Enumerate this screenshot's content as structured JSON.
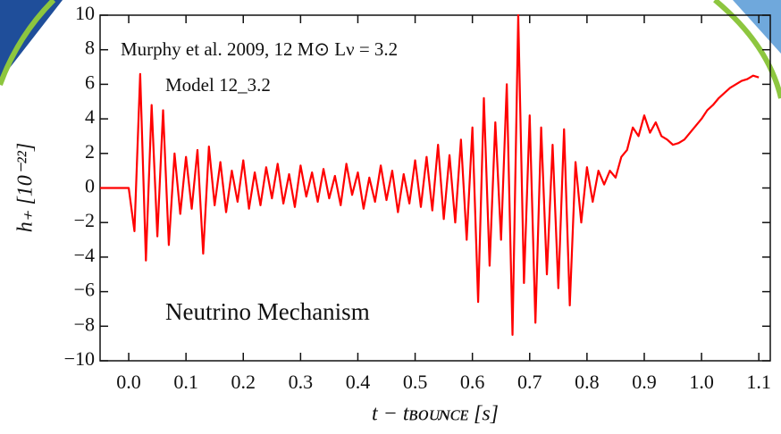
{
  "chart_data": {
    "type": "line",
    "annotations": [
      "Murphy et al. 2009, 12 M⊙ Lν = 3.2",
      "Model 12_3.2",
      "Neutrino Mechanism"
    ],
    "x_label": "t − tʙᴏᴜɴᴄᴇ [s]",
    "y_label": "h₊ [10⁻²²]",
    "xlim": [
      -0.05,
      1.12
    ],
    "ylim": [
      -10,
      10
    ],
    "xticks": [
      {
        "value": 0,
        "label": "0.0"
      },
      0.1,
      0.2,
      0.3,
      0.4,
      0.5,
      0.6,
      0.7,
      0.8,
      0.9,
      {
        "value": 1,
        "label": "1.0"
      },
      1.1
    ],
    "yticks": [
      {
        "value": -10,
        "label": "−10"
      },
      {
        "value": -8,
        "label": "−8"
      },
      {
        "value": -6,
        "label": "−6"
      },
      {
        "value": -4,
        "label": "−4"
      },
      {
        "value": -2,
        "label": "−2"
      },
      0,
      2,
      4,
      6,
      8,
      10
    ],
    "x": [
      -0.05,
      -0.04,
      -0.03,
      -0.02,
      -0.01,
      0,
      0.01,
      0.02,
      0.03,
      0.04,
      0.05,
      0.06,
      0.07,
      0.08,
      0.09,
      0.1,
      0.11,
      0.12,
      0.13,
      0.14,
      0.15,
      0.16,
      0.17,
      0.18,
      0.19,
      0.2,
      0.21,
      0.22,
      0.23,
      0.24,
      0.25,
      0.26,
      0.27,
      0.28,
      0.29,
      0.3,
      0.31,
      0.32,
      0.33,
      0.34,
      0.35,
      0.36,
      0.37,
      0.38,
      0.39,
      0.4,
      0.41,
      0.42,
      0.43,
      0.44,
      0.45,
      0.46,
      0.47,
      0.48,
      0.49,
      0.5,
      0.51,
      0.52,
      0.53,
      0.54,
      0.55,
      0.56,
      0.57,
      0.58,
      0.59,
      0.6,
      0.61,
      0.62,
      0.63,
      0.64,
      0.65,
      0.66,
      0.67,
      0.68,
      0.69,
      0.7,
      0.71,
      0.72,
      0.73,
      0.74,
      0.75,
      0.76,
      0.77,
      0.78,
      0.79,
      0.8,
      0.81,
      0.82,
      0.83,
      0.84,
      0.85,
      0.86,
      0.87,
      0.88,
      0.89,
      0.9,
      0.91,
      0.92,
      0.93,
      0.94,
      0.95,
      0.96,
      0.97,
      0.98,
      0.99,
      1,
      1.01,
      1.02,
      1.03,
      1.04,
      1.05,
      1.06,
      1.07,
      1.08,
      1.09,
      1.1
    ],
    "series": [
      {
        "color": "#ff0000",
        "values": [
          0,
          0,
          0,
          0,
          0,
          0,
          -2.5,
          6.6,
          -4.2,
          4.8,
          -2.8,
          4.5,
          -3.3,
          2.0,
          -1.5,
          1.8,
          -1.2,
          2.2,
          -3.8,
          2.4,
          -1.0,
          1.5,
          -1.4,
          1.0,
          -0.8,
          1.6,
          -1.2,
          0.9,
          -1.0,
          1.2,
          -0.6,
          1.4,
          -0.9,
          0.8,
          -1.1,
          1.3,
          -0.5,
          0.9,
          -0.8,
          1.1,
          -0.6,
          0.7,
          -1.0,
          1.4,
          -0.4,
          0.9,
          -1.2,
          0.6,
          -0.8,
          1.3,
          -0.7,
          1.0,
          -1.4,
          0.8,
          -0.9,
          1.6,
          -1.1,
          1.8,
          -1.3,
          2.5,
          -1.8,
          1.9,
          -2.0,
          2.8,
          -3.0,
          3.5,
          -6.6,
          5.2,
          -4.5,
          3.8,
          -3.0,
          6.0,
          -8.5,
          10,
          -5.5,
          4.2,
          -7.8,
          3.5,
          -5.0,
          2.5,
          -5.8,
          3.4,
          -6.8,
          1.5,
          -2.0,
          1.2,
          -0.8,
          1.0,
          0.2,
          1.0,
          0.6,
          1.8,
          2.2,
          3.5,
          3.0,
          4.2,
          3.2,
          3.8,
          3.0,
          2.8,
          2.5,
          2.6,
          2.8,
          3.2,
          3.6,
          4.0,
          4.5,
          4.8,
          5.2,
          5.5,
          5.8,
          6.0,
          6.2,
          6.3,
          6.5,
          6.4
        ]
      }
    ]
  }
}
